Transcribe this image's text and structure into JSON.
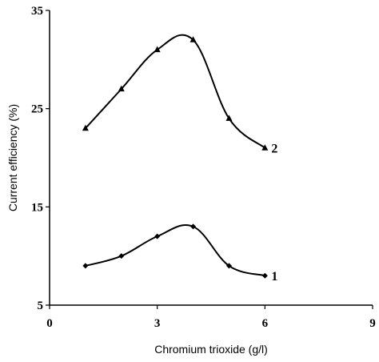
{
  "chart_data": {
    "type": "line",
    "xlabel": "Chromium trioxide (g/l)",
    "ylabel": "Current efficiency (%)",
    "xlim": [
      0,
      9
    ],
    "ylim": [
      5,
      35
    ],
    "xticks": [
      0,
      3,
      6,
      9
    ],
    "yticks": [
      5,
      15,
      25,
      35
    ],
    "x_tick_labels": [
      "0",
      "3",
      "6",
      "9"
    ],
    "y_tick_labels": [
      "5",
      "15",
      "25",
      "35"
    ],
    "grid": false,
    "series": [
      {
        "name": "1",
        "marker": "diamond",
        "x": [
          1,
          2,
          3,
          4,
          5,
          6
        ],
        "y": [
          9,
          10,
          12,
          13,
          9,
          8
        ]
      },
      {
        "name": "2",
        "marker": "triangle",
        "x": [
          1,
          2,
          3,
          4,
          5,
          6
        ],
        "y": [
          23,
          27,
          31,
          32,
          24,
          21
        ]
      }
    ]
  }
}
